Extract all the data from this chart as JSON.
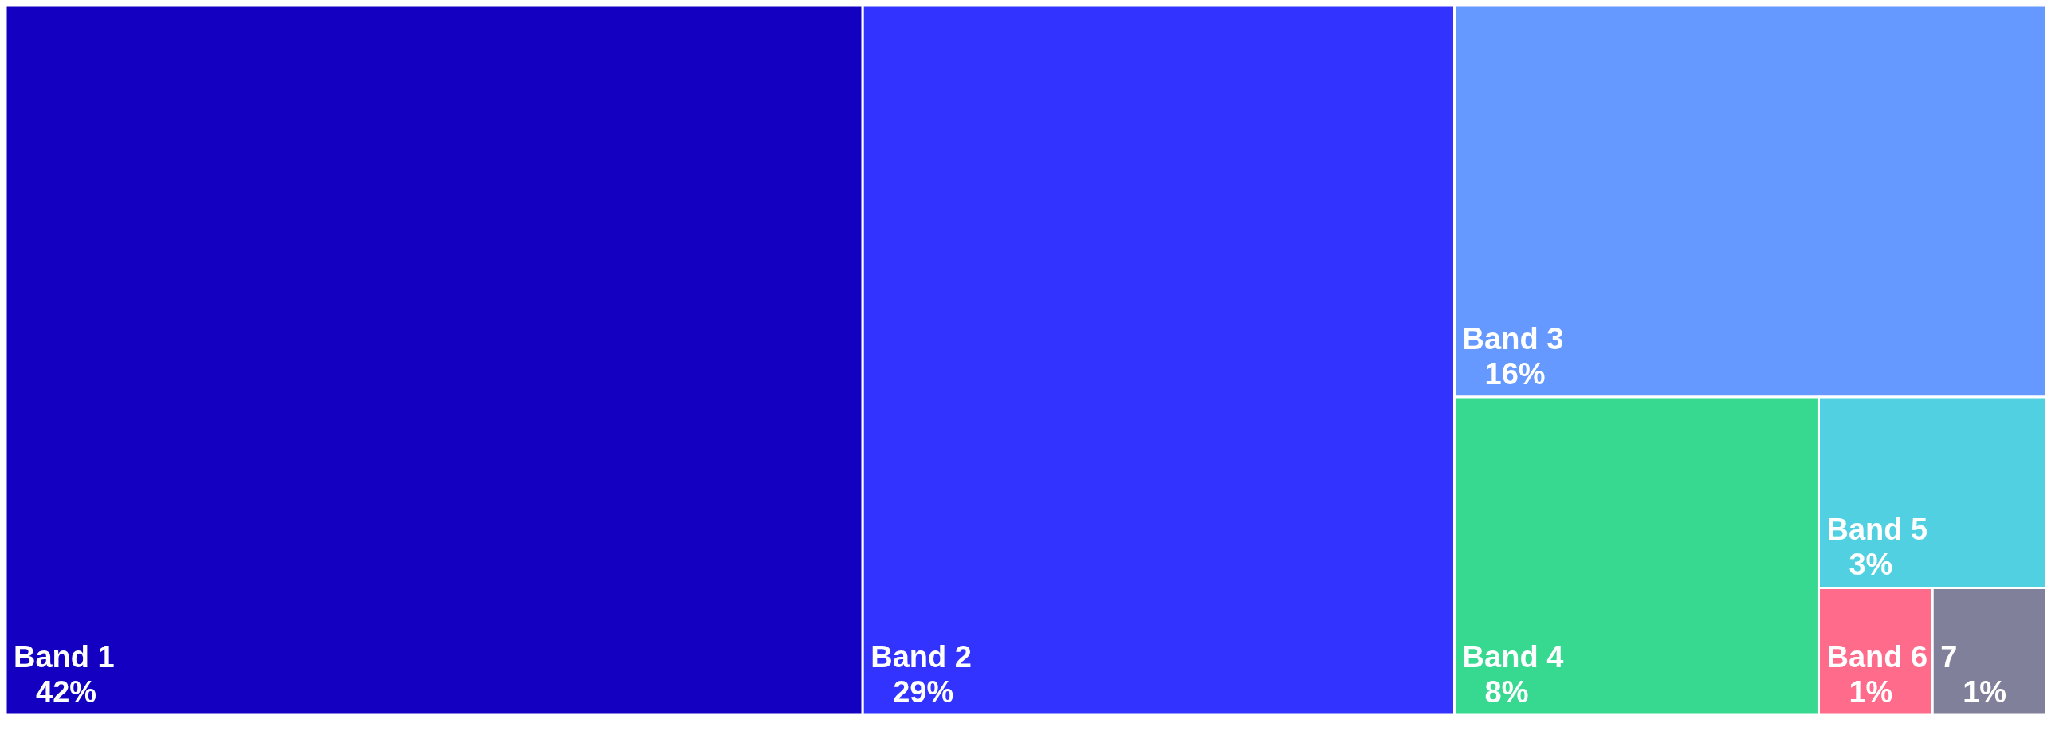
{
  "chart_data": {
    "type": "other",
    "categories": [
      "Band 1",
      "Band 2",
      "Band 3",
      "Band 4",
      "Band 5",
      "Band 6",
      "7"
    ],
    "values": [
      42,
      29,
      16,
      8,
      3,
      1,
      1
    ],
    "value_labels": [
      "42%",
      "29%",
      "16%",
      "8%",
      "3%",
      "1%",
      "1%"
    ],
    "colors": [
      "#1400c0",
      "#3333ff",
      "#6699ff",
      "#36d98f",
      "#50d0e0",
      "#ff6b8b",
      "#80809a"
    ]
  }
}
